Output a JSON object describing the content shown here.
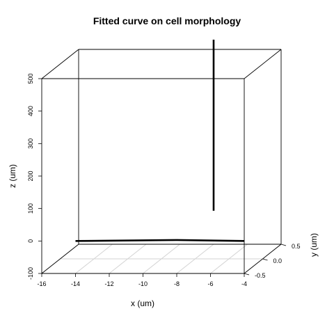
{
  "chart_data": {
    "type": "line",
    "projection": "3d",
    "title": "Fitted curve on cell morphology",
    "xlabel": "x (um)",
    "ylabel": "y (um)",
    "zlabel": "z (um)",
    "xlim": [
      -16,
      -4
    ],
    "ylim": [
      -0.5,
      0.5
    ],
    "zlim": [
      -100,
      500
    ],
    "x_ticks": [
      "-16",
      "-14",
      "-12",
      "-10",
      "-8",
      "-6",
      "-4"
    ],
    "y_ticks": [
      "-0.5",
      "0.0",
      "0.5"
    ],
    "z_ticks": [
      "-100",
      "0",
      "100",
      "200",
      "300",
      "400",
      "500"
    ],
    "grid": "xy-floor",
    "series": [
      {
        "color": "#000000",
        "points": [
          {
            "x": -14,
            "y": -0.5,
            "z": 0
          },
          {
            "x": -8,
            "y": -0.5,
            "z": 3
          },
          {
            "x": -4,
            "y": -0.5,
            "z": 0
          }
        ]
      },
      {
        "color": "#000000",
        "points": [
          {
            "x": -8,
            "y": 0.5,
            "z": 3
          },
          {
            "x": -8,
            "y": 0.5,
            "z": 530
          }
        ]
      }
    ]
  }
}
